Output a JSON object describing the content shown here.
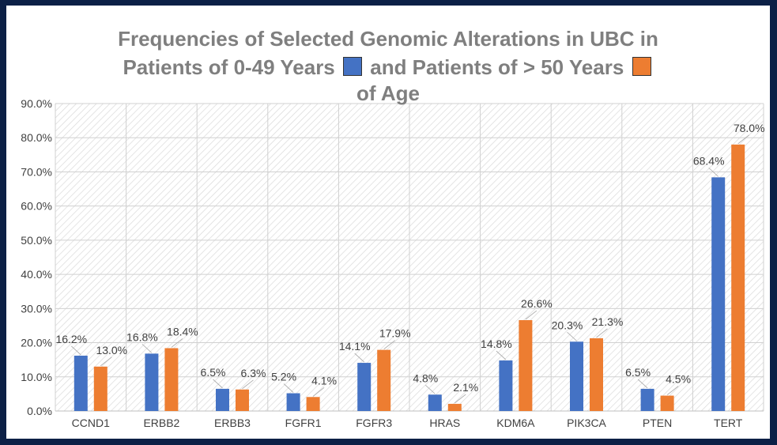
{
  "chart_data": {
    "type": "bar",
    "title_lines": [
      "Frequencies of Selected Genomic Alterations in UBC in",
      "Patients of 0-49 Years",
      "and Patients of > 50 Years",
      "of Age"
    ],
    "categories": [
      "CCND1",
      "ERBB2",
      "ERBB3",
      "FGFR1",
      "FGFR3",
      "HRAS",
      "KDM6A",
      "PIK3CA",
      "PTEN",
      "TERT"
    ],
    "series": [
      {
        "color": "#4472c4",
        "values": [
          16.2,
          16.8,
          6.5,
          5.2,
          14.1,
          4.8,
          14.8,
          20.3,
          6.5,
          68.4
        ],
        "labels": [
          "16.2%",
          "16.8%",
          "6.5%",
          "5.2%",
          "14.1%",
          "4.8%",
          "14.8%",
          "20.3%",
          "6.5%",
          "68.4%"
        ]
      },
      {
        "color": "#ed7d31",
        "values": [
          13.0,
          18.4,
          6.3,
          4.1,
          17.9,
          2.1,
          26.6,
          21.3,
          4.5,
          78.0
        ],
        "labels": [
          "13.0%",
          "18.4%",
          "6.3%",
          "4.1%",
          "17.9%",
          "2.1%",
          "26.6%",
          "21.3%",
          "4.5%",
          "78.0%"
        ]
      }
    ],
    "yticks": [
      "0.0%",
      "10.0%",
      "20.0%",
      "30.0%",
      "40.0%",
      "50.0%",
      "60.0%",
      "70.0%",
      "80.0%",
      "90.0%"
    ],
    "ylim": [
      0,
      90
    ],
    "grid": true,
    "legend": "inline-in-title"
  }
}
